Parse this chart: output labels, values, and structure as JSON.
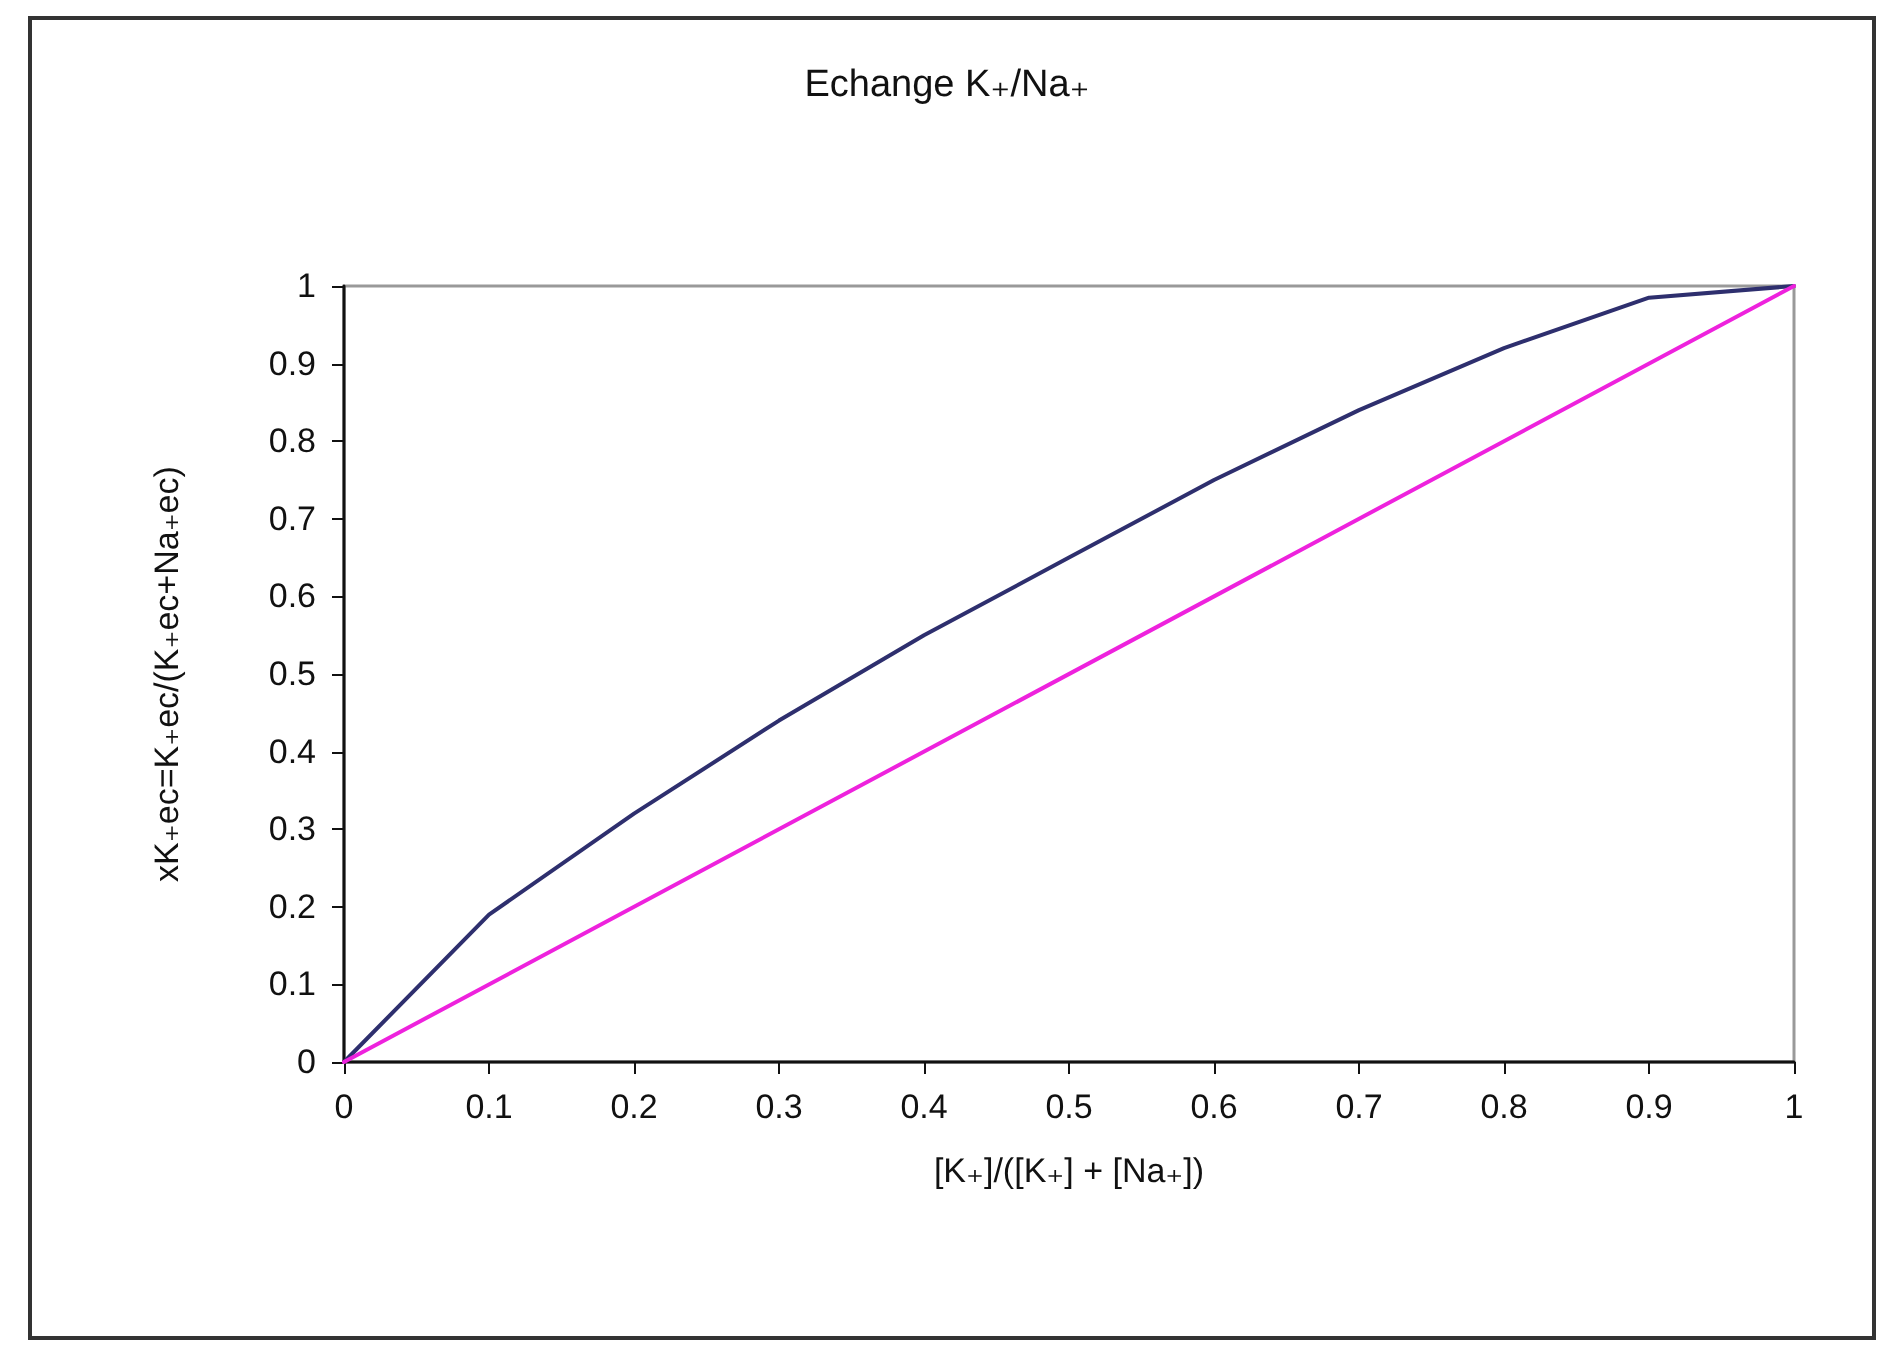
{
  "chart_data": {
    "type": "line",
    "title": "Echange K₊/Na₊",
    "xlabel": "[K₊]/([K₊] + [Na₊])",
    "ylabel": "xK₊ec=K₊ec/(K₊ec+Na₊ec)",
    "series": [
      {
        "color": "#2e2f6e",
        "x": [
          0,
          0.1,
          0.2,
          0.3,
          0.4,
          0.5,
          0.6,
          0.7,
          0.8,
          0.9,
          1
        ],
        "values": [
          0,
          0.19,
          0.32,
          0.44,
          0.55,
          0.65,
          0.75,
          0.84,
          0.92,
          0.985,
          1
        ]
      },
      {
        "color": "#ee22dd",
        "x": [
          0,
          1
        ],
        "values": [
          0,
          1
        ]
      }
    ],
    "xlim": [
      0,
      1
    ],
    "xticks": [
      0,
      0.1,
      0.2,
      0.3,
      0.4,
      0.5,
      0.6,
      0.7,
      0.8,
      0.9,
      1
    ],
    "ylim": [
      0,
      1
    ],
    "yticks": [
      0,
      0.1,
      0.2,
      0.3,
      0.4,
      0.5,
      0.6,
      0.7,
      0.8,
      0.9,
      1
    ],
    "grid": false,
    "marker": "none",
    "line_style": "solid"
  }
}
